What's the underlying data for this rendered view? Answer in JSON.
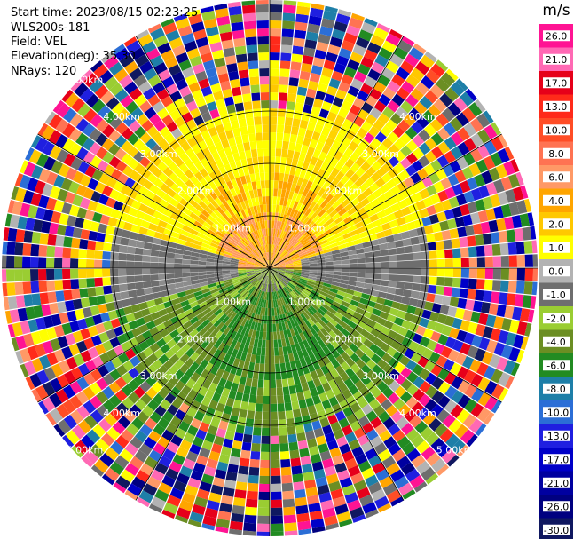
{
  "info": {
    "start_time": "Start time: 2023/08/15 02:23:25",
    "instrument": "WLS200s-181",
    "field": "Field: VEL",
    "elevation": "Elevation(deg): 35.30",
    "nrays": "NRays: 120"
  },
  "colorbar": {
    "unit": "m/s",
    "ticks": [
      "26.0",
      "21.0",
      "17.0",
      "13.0",
      "10.0",
      "8.0",
      "6.0",
      "4.0",
      "2.0",
      "1.0",
      "0.0",
      "-1.0",
      "-2.0",
      "-4.0",
      "-6.0",
      "-8.0",
      "-10.0",
      "-13.0",
      "-17.0",
      "-21.0",
      "-26.0",
      "-30.0"
    ],
    "colors": [
      "#ff1493",
      "#ff69b4",
      "#e6001a",
      "#ff2a1a",
      "#ff4d26",
      "#ff7352",
      "#ff9966",
      "#ffa500",
      "#ffc800",
      "#ffff00",
      "#b3b3b3",
      "#6e6e6e",
      "#9acd32",
      "#6b8e23",
      "#228b22",
      "#1e7fa8",
      "#2b6ed6",
      "#1f1fe0",
      "#0000c8",
      "#0000a0",
      "#000080",
      "#101860"
    ]
  },
  "range_rings": {
    "labels": [
      "1.00km",
      "2.00km",
      "3.00km",
      "4.00km",
      "5.00km"
    ]
  }
}
